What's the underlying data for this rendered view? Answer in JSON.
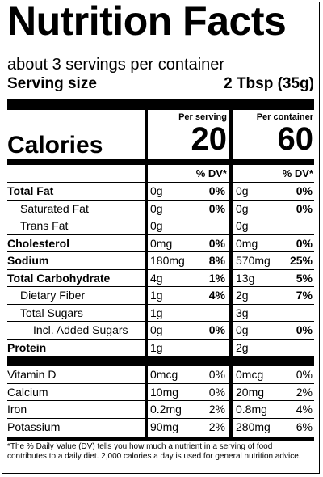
{
  "title": "Nutrition Facts",
  "servings": "about 3 servings per container",
  "serving_size_label": "Serving size",
  "serving_size_value": "2 Tbsp (35g)",
  "columns": {
    "per_serving": "Per serving",
    "per_container": "Per container"
  },
  "calories": {
    "label": "Calories",
    "per_serving": "20",
    "per_container": "60"
  },
  "dv_header": "% DV*",
  "nutrients": [
    {
      "name": "Total Fat",
      "bold": true,
      "indent": 0,
      "s_amt": "0g",
      "s_dv": "0%",
      "c_amt": "0g",
      "c_dv": "0%"
    },
    {
      "name": "Saturated Fat",
      "bold": false,
      "indent": 1,
      "s_amt": "0g",
      "s_dv": "0%",
      "c_amt": "0g",
      "c_dv": "0%"
    },
    {
      "name": "Trans Fat",
      "bold": false,
      "indent": 1,
      "s_amt": "0g",
      "s_dv": "",
      "c_amt": "0g",
      "c_dv": ""
    },
    {
      "name": "Cholesterol",
      "bold": true,
      "indent": 0,
      "s_amt": "0mg",
      "s_dv": "0%",
      "c_amt": "0mg",
      "c_dv": "0%"
    },
    {
      "name": "Sodium",
      "bold": true,
      "indent": 0,
      "s_amt": "180mg",
      "s_dv": "8%",
      "c_amt": "570mg",
      "c_dv": "25%"
    },
    {
      "name": "Total Carbohydrate",
      "bold": true,
      "indent": 0,
      "s_amt": "4g",
      "s_dv": "1%",
      "c_amt": "13g",
      "c_dv": "5%"
    },
    {
      "name": "Dietary Fiber",
      "bold": false,
      "indent": 1,
      "s_amt": "1g",
      "s_dv": "4%",
      "c_amt": "2g",
      "c_dv": "7%"
    },
    {
      "name": "Total Sugars",
      "bold": false,
      "indent": 1,
      "s_amt": "1g",
      "s_dv": "",
      "c_amt": "3g",
      "c_dv": ""
    },
    {
      "name": "Incl. Added Sugars",
      "bold": false,
      "indent": 2,
      "s_amt": "0g",
      "s_dv": "0%",
      "c_amt": "0g",
      "c_dv": "0%"
    },
    {
      "name": "Protein",
      "bold": true,
      "indent": 0,
      "s_amt": "1g",
      "s_dv": "",
      "c_amt": "2g",
      "c_dv": ""
    }
  ],
  "vitamins": [
    {
      "name": "Vitamin D",
      "s_amt": "0mcg",
      "s_dv": "0%",
      "c_amt": "0mcg",
      "c_dv": "0%"
    },
    {
      "name": "Calcium",
      "s_amt": "10mg",
      "s_dv": "0%",
      "c_amt": "20mg",
      "c_dv": "2%"
    },
    {
      "name": "Iron",
      "s_amt": "0.2mg",
      "s_dv": "2%",
      "c_amt": "0.8mg",
      "c_dv": "4%"
    },
    {
      "name": "Potassium",
      "s_amt": "90mg",
      "s_dv": "2%",
      "c_amt": "280mg",
      "c_dv": "6%"
    }
  ],
  "footnote": "*The % Daily Value (DV) tells you how much a nutrient in a serving of food contributes to a daily diet. 2,000 calories a day is used for general nutrition advice."
}
